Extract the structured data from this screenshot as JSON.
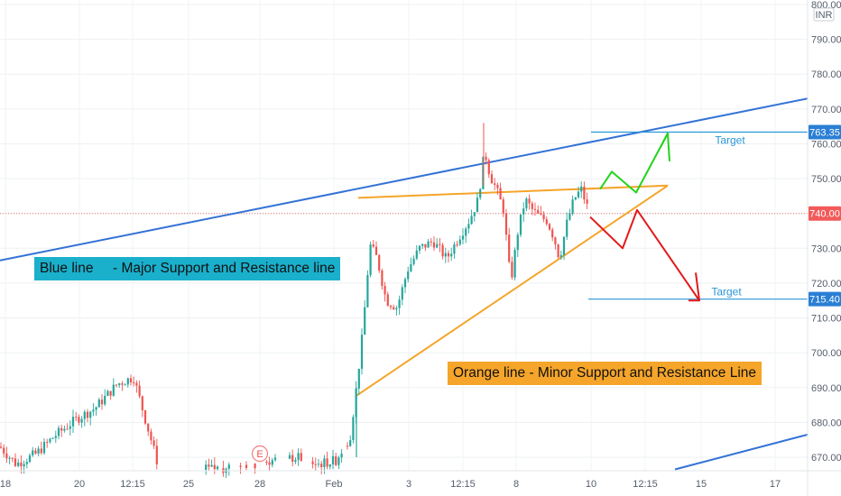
{
  "chart_data": {
    "type": "candlestick",
    "currency": "INR",
    "y_axis": {
      "min": 665,
      "max": 800,
      "tick_labels": [
        "800.00",
        "790.00",
        "780.00",
        "770.00",
        "760.00",
        "750.00",
        "740.00",
        "730.00",
        "720.00",
        "710.00",
        "700.00",
        "690.00",
        "680.00",
        "670.00"
      ],
      "tick_values": [
        800,
        790,
        780,
        770,
        760,
        750,
        740,
        730,
        720,
        710,
        700,
        690,
        680,
        670
      ]
    },
    "x_axis": {
      "tick_labels": [
        "18",
        "20",
        "12:15",
        "25",
        "28",
        "Feb",
        "3",
        "12:15",
        "8",
        "10",
        "12:15",
        "15",
        "17"
      ]
    },
    "price_badges": [
      {
        "label": "763.35",
        "value": 763.35,
        "color": "#2a7fd4"
      },
      {
        "label": "740.00",
        "value": 740.0,
        "color": "#f25a5a"
      },
      {
        "label": "715.40",
        "value": 715.4,
        "color": "#2a7fd4"
      }
    ],
    "current_price": 740.0,
    "earnings_marker": "E",
    "annotations": {
      "blue_note": "Blue line     - Major Support and Resistance line",
      "orange_note": "Orange line - Minor Support and Resistance Line",
      "target_up": "Target",
      "target_down": "Target"
    },
    "trend_lines": {
      "blue_major": "rising resistance/support line",
      "blue_lower": "lower parallel support line",
      "orange_upper": "flat resistance near 748",
      "orange_lower": "rising support from 687 to 748"
    },
    "grid": true
  },
  "colors": {
    "up": "#26a69a",
    "down": "#ef5350",
    "blue_line": "#3472d6",
    "orange_line": "#f5a52a",
    "target_line": "#2a96d8",
    "green_path": "#23d41c",
    "red_path": "#e21a1a"
  }
}
